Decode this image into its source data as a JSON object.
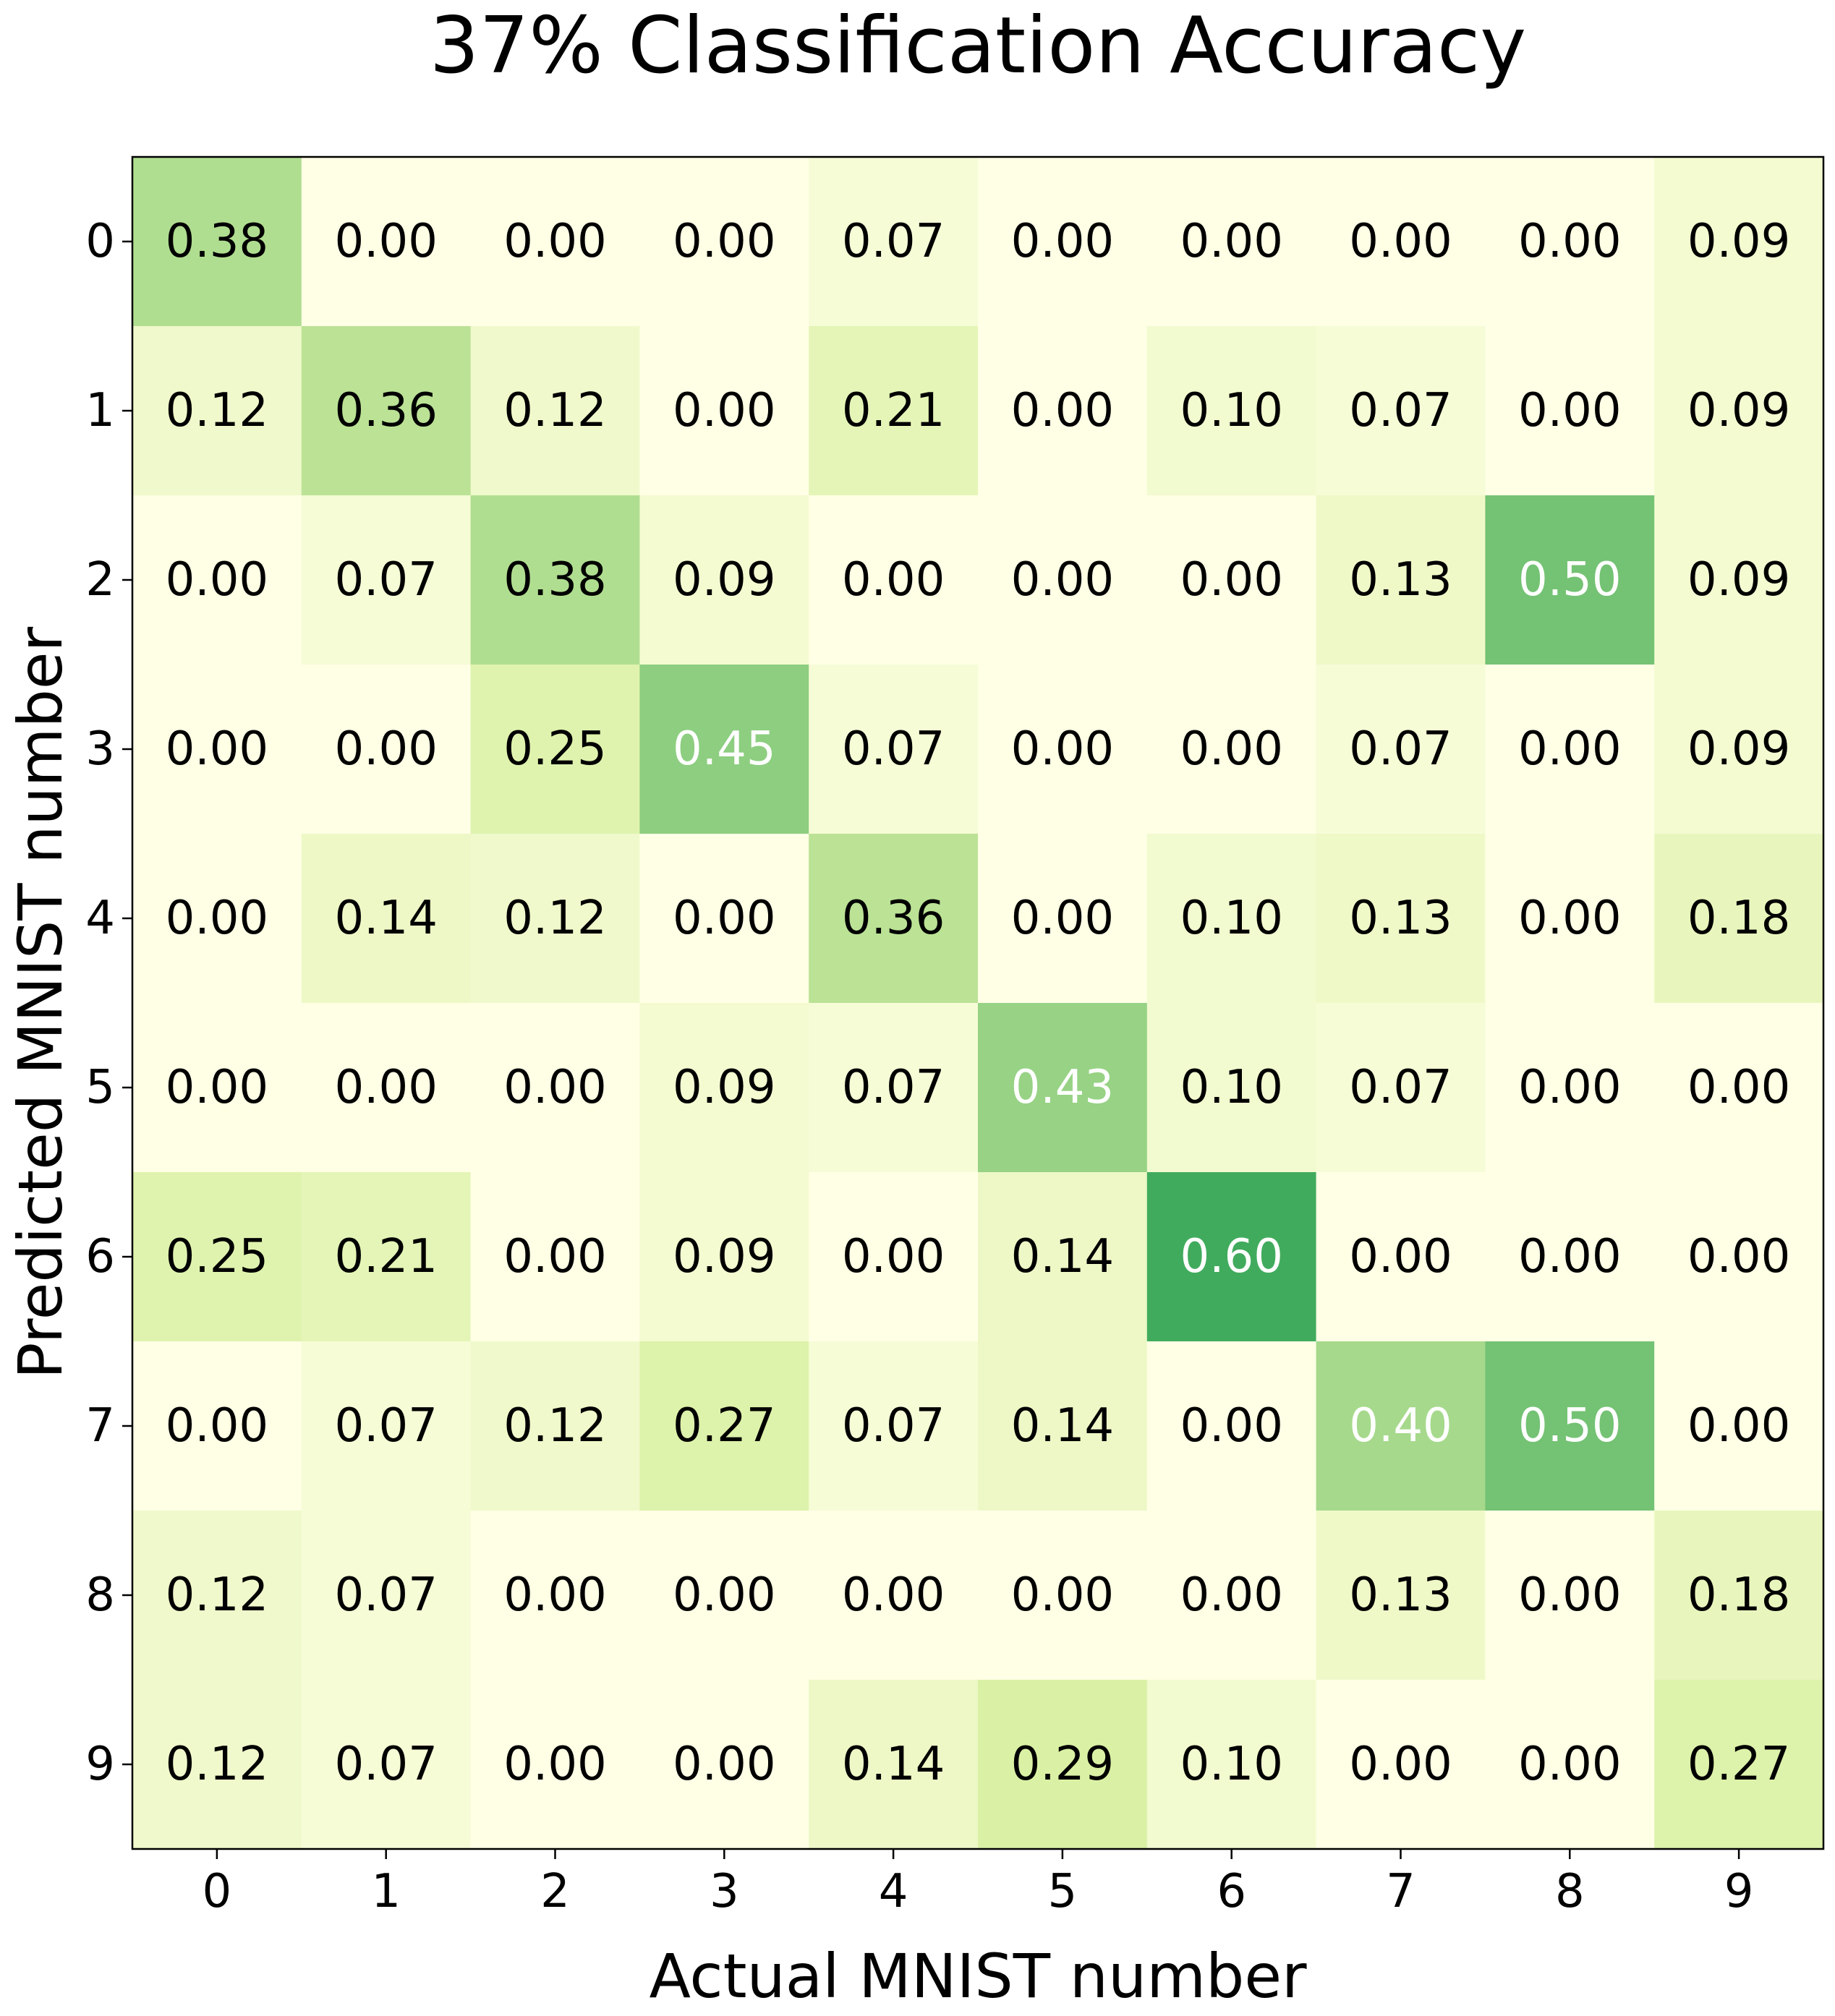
{
  "chart_data": {
    "type": "heatmap",
    "title": "37% Classification Accuracy",
    "xlabel": "Actual MNIST number",
    "ylabel": "Predicted MNIST number",
    "x_ticks": [
      "0",
      "1",
      "2",
      "3",
      "4",
      "5",
      "6",
      "7",
      "8",
      "9"
    ],
    "y_ticks": [
      "0",
      "1",
      "2",
      "3",
      "4",
      "5",
      "6",
      "7",
      "8",
      "9"
    ],
    "value_format": "0.00",
    "color_scale": {
      "low": "#ffffe5",
      "mid": "#d9f0a3",
      "high": "#41ab5d",
      "vmax": 0.6,
      "white_text_threshold": 0.4
    },
    "values": [
      [
        0.38,
        0.0,
        0.0,
        0.0,
        0.07,
        0.0,
        0.0,
        0.0,
        0.0,
        0.09
      ],
      [
        0.12,
        0.36,
        0.12,
        0.0,
        0.21,
        0.0,
        0.1,
        0.07,
        0.0,
        0.09
      ],
      [
        0.0,
        0.07,
        0.38,
        0.09,
        0.0,
        0.0,
        0.0,
        0.13,
        0.5,
        0.09
      ],
      [
        0.0,
        0.0,
        0.25,
        0.45,
        0.07,
        0.0,
        0.0,
        0.07,
        0.0,
        0.09
      ],
      [
        0.0,
        0.14,
        0.12,
        0.0,
        0.36,
        0.0,
        0.1,
        0.13,
        0.0,
        0.18
      ],
      [
        0.0,
        0.0,
        0.0,
        0.09,
        0.07,
        0.43,
        0.1,
        0.07,
        0.0,
        0.0
      ],
      [
        0.25,
        0.21,
        0.0,
        0.09,
        0.0,
        0.14,
        0.6,
        0.0,
        0.0,
        0.0
      ],
      [
        0.0,
        0.07,
        0.12,
        0.27,
        0.07,
        0.14,
        0.0,
        0.4,
        0.5,
        0.0
      ],
      [
        0.12,
        0.07,
        0.0,
        0.0,
        0.0,
        0.0,
        0.0,
        0.13,
        0.0,
        0.18
      ],
      [
        0.12,
        0.07,
        0.0,
        0.0,
        0.14,
        0.29,
        0.1,
        0.0,
        0.0,
        0.27
      ]
    ]
  }
}
